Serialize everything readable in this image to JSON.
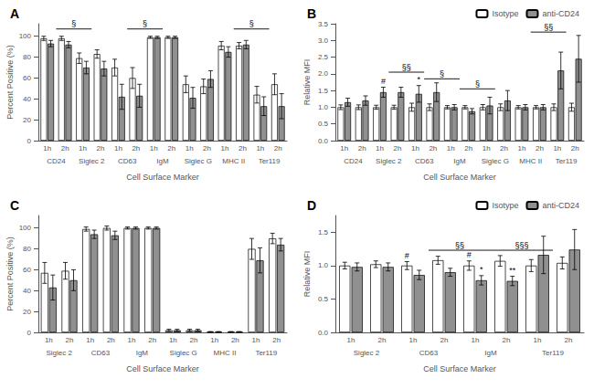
{
  "chart_data": [
    {
      "type": "bar",
      "title": "A",
      "xlabel": "Cell Surface Marker",
      "ylabel": "Percent Positive (%)",
      "categories": [
        "CD24",
        "Siglec 2",
        "CD63",
        "IgM",
        "Siglec G",
        "MHC II",
        "Ter119"
      ],
      "subcategories": [
        "1h",
        "2h"
      ],
      "ylim": [
        0,
        112
      ],
      "yticks": [
        0,
        20,
        40,
        60,
        80,
        100
      ],
      "grid": false,
      "series": [
        {
          "name": "Isotype",
          "time": "1h",
          "color": "#ffffff",
          "values": [
            98,
            79,
            70,
            99,
            54,
            91,
            44
          ],
          "errors": [
            2,
            5,
            8,
            1,
            8,
            4,
            8
          ]
        },
        {
          "name": "anti-CD24",
          "time": "1h",
          "color": "#909090",
          "values": [
            93,
            70,
            42,
            99,
            41,
            85,
            33
          ],
          "errors": [
            3,
            6,
            12,
            1,
            10,
            5,
            9
          ]
        },
        {
          "name": "Isotype",
          "time": "2h",
          "color": "#ffffff",
          "values": [
            98,
            83,
            60,
            99,
            52,
            91,
            54
          ],
          "errors": [
            2,
            4,
            10,
            1,
            7,
            3,
            10
          ]
        },
        {
          "name": "anti-CD24",
          "time": "2h",
          "color": "#909090",
          "values": [
            92,
            69,
            43,
            99,
            59,
            92,
            33
          ],
          "errors": [
            3,
            7,
            11,
            1,
            8,
            4,
            12
          ]
        }
      ],
      "brackets": [
        {
          "x1": "CD24",
          "x2": "Siglec 2",
          "y": 107,
          "label": "§"
        },
        {
          "x1": "CD63",
          "x2": "IgM",
          "y": 107,
          "label": "§"
        },
        {
          "x1": "MHC II",
          "x2": "Ter119",
          "y": 107,
          "label": "§"
        }
      ],
      "annotations": []
    },
    {
      "type": "bar",
      "title": "B",
      "xlabel": "Cell Surface Marker",
      "ylabel": "Relative MFI",
      "categories": [
        "CD24",
        "Siglec 2",
        "CD63",
        "IgM",
        "Siglec G",
        "MHC II",
        "Ter119"
      ],
      "subcategories": [
        "1h",
        "2h"
      ],
      "ylim": [
        0,
        3.5
      ],
      "yticks": [
        {
          "value": 0,
          "label": "0.0"
        },
        0.5,
        {
          "value": 1,
          "label": "1.0"
        },
        1.5,
        {
          "value": 2,
          "label": "2.0"
        },
        2.5,
        {
          "value": 3,
          "label": "3.0"
        },
        3.5
      ],
      "grid": false,
      "legend": "upper right",
      "series": [
        {
          "name": "Isotype",
          "time": "1h",
          "color": "#ffffff",
          "values": [
            1.0,
            1.0,
            1.0,
            1.0,
            1.0,
            1.0,
            1.0
          ],
          "errors": [
            0.07,
            0.06,
            0.12,
            0.05,
            0.08,
            0.05,
            0.1
          ]
        },
        {
          "name": "anti-CD24",
          "time": "1h",
          "color": "#909090",
          "values": [
            1.15,
            1.45,
            1.4,
            1.0,
            1.05,
            1.0,
            2.1
          ],
          "errors": [
            0.12,
            0.15,
            0.25,
            0.08,
            0.25,
            0.08,
            0.55
          ]
        },
        {
          "name": "Isotype",
          "time": "2h",
          "color": "#ffffff",
          "values": [
            1.0,
            1.0,
            1.0,
            1.0,
            1.0,
            1.0,
            1.0
          ],
          "errors": [
            0.07,
            0.06,
            0.1,
            0.05,
            0.1,
            0.05,
            0.12
          ]
        },
        {
          "name": "anti-CD24",
          "time": "2h",
          "color": "#909090",
          "values": [
            1.2,
            1.45,
            1.45,
            0.88,
            1.2,
            1.0,
            2.45
          ],
          "errors": [
            0.14,
            0.15,
            0.28,
            0.08,
            0.3,
            0.08,
            0.7
          ]
        }
      ],
      "brackets": [
        {
          "x1": "Siglec 2",
          "x2": "CD63",
          "y": 2.05,
          "label": "§§"
        },
        {
          "x1": "CD63",
          "x2": "IgM",
          "y": 1.85,
          "label": "§"
        },
        {
          "x1": "IgM",
          "x2": "Siglec G",
          "y": 1.55,
          "label": "§"
        },
        {
          "x1": "MHC II",
          "x2": "Ter119",
          "y": 3.25,
          "label": "§§"
        }
      ],
      "annotations": [
        {
          "category": "Siglec 2",
          "time": "1h",
          "series": "anti-CD24",
          "label": "#"
        },
        {
          "category": "CD63",
          "time": "1h",
          "series": "anti-CD24",
          "label": "*"
        }
      ]
    },
    {
      "type": "bar",
      "title": "C",
      "xlabel": "Cell Surface Marker",
      "ylabel": "Percent Positive (%)",
      "categories": [
        "Siglec 2",
        "CD63",
        "IgM",
        "Siglec G",
        "MHC II",
        "Ter119"
      ],
      "subcategories": [
        "1h",
        "2h"
      ],
      "ylim": [
        0,
        112
      ],
      "yticks": [
        0,
        20,
        40,
        60,
        80,
        100
      ],
      "grid": false,
      "series": [
        {
          "name": "Isotype",
          "time": "1h",
          "color": "#ffffff",
          "values": [
            57,
            99,
            100,
            2,
            0.5,
            80
          ],
          "errors": [
            10,
            2,
            1,
            1,
            0.3,
            10
          ]
        },
        {
          "name": "anti-CD24",
          "time": "1h",
          "color": "#909090",
          "values": [
            43,
            94,
            100,
            2,
            0.5,
            69
          ],
          "errors": [
            12,
            4,
            1,
            1,
            0.3,
            12
          ]
        },
        {
          "name": "Isotype",
          "time": "2h",
          "color": "#ffffff",
          "values": [
            59,
            100,
            100,
            2,
            0.5,
            90
          ],
          "errors": [
            8,
            2,
            1,
            1,
            0.3,
            5
          ]
        },
        {
          "name": "anti-CD24",
          "time": "2h",
          "color": "#909090",
          "values": [
            50,
            93,
            100,
            2,
            0.5,
            84
          ],
          "errors": [
            10,
            4,
            1,
            1,
            0.3,
            6
          ]
        }
      ],
      "brackets": [],
      "annotations": []
    },
    {
      "type": "bar",
      "title": "D",
      "xlabel": "Cell Surface Marker",
      "ylabel": "Relative MFI",
      "categories": [
        "Siglec 2",
        "CD63",
        "IgM",
        "Ter119"
      ],
      "subcategories": [
        "1h",
        "2h"
      ],
      "ylim": [
        0,
        1.75
      ],
      "yticks": [
        {
          "value": 0,
          "label": "0.0"
        },
        0.5,
        {
          "value": 1,
          "label": "1.0"
        },
        1.5
      ],
      "grid": false,
      "legend": "upper right",
      "series": [
        {
          "name": "Isotype",
          "time": "1h",
          "color": "#ffffff",
          "values": [
            1.0,
            1.0,
            1.0,
            1.0
          ],
          "errors": [
            0.05,
            0.06,
            0.07,
            0.09
          ]
        },
        {
          "name": "anti-CD24",
          "time": "1h",
          "color": "#909090",
          "values": [
            0.98,
            0.86,
            0.78,
            1.16
          ],
          "errors": [
            0.06,
            0.07,
            0.07,
            0.28
          ]
        },
        {
          "name": "Isotype",
          "time": "2h",
          "color": "#ffffff",
          "values": [
            1.02,
            1.08,
            1.07,
            1.04
          ],
          "errors": [
            0.05,
            0.06,
            0.08,
            0.09
          ]
        },
        {
          "name": "anti-CD24",
          "time": "2h",
          "color": "#909090",
          "values": [
            0.98,
            0.9,
            0.77,
            1.24
          ],
          "errors": [
            0.06,
            0.06,
            0.07,
            0.3
          ]
        }
      ],
      "brackets": [
        {
          "x1": "CD63",
          "x2": "IgM",
          "y": 1.23,
          "label": "§§"
        },
        {
          "x1": "IgM",
          "x2": "Ter119",
          "y": 1.23,
          "label": "§§§"
        }
      ],
      "annotations": [
        {
          "category": "CD63",
          "time": "1h",
          "series": "Isotype",
          "label": "#"
        },
        {
          "category": "IgM",
          "time": "1h",
          "series": "Isotype",
          "label": "#"
        },
        {
          "category": "IgM",
          "time": "1h",
          "series": "anti-CD24",
          "label": "*"
        },
        {
          "category": "IgM",
          "time": "2h",
          "series": "anti-CD24",
          "label": "**"
        }
      ]
    }
  ]
}
